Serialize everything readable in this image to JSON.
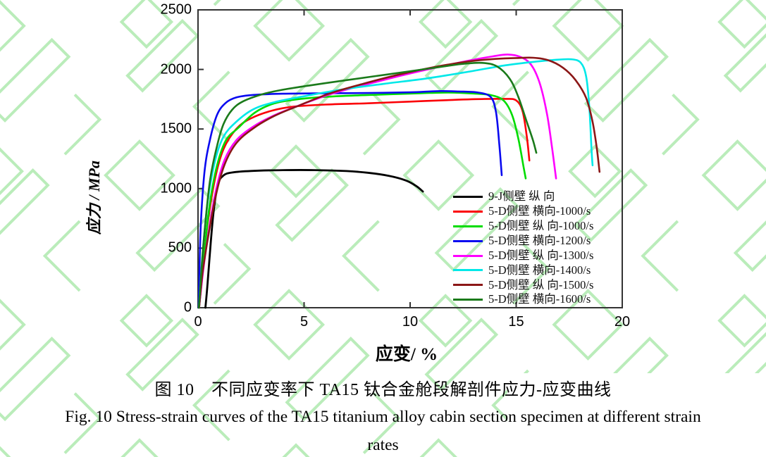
{
  "figure": {
    "caption_zh": "图 10　不同应变率下 TA15 钛合金舱段解剖件应力-应变曲线",
    "caption_en_line1": "Fig. 10 Stress-strain curves of the TA15 titanium alloy cabin section specimen at different strain",
    "caption_en_line2": "rates"
  },
  "watermark": {
    "color": "#a9e8a9"
  },
  "chart_data": {
    "type": "line",
    "title": "",
    "xlabel": "应变/ %",
    "ylabel": "应力 / MPa",
    "xlim": [
      0,
      20
    ],
    "ylim": [
      0,
      2500
    ],
    "x_ticks": [
      "0",
      "5",
      "10",
      "15",
      "20"
    ],
    "y_ticks": [
      "0",
      "500",
      "1000",
      "1500",
      "2000",
      "2500"
    ],
    "grid": false,
    "legend_position": "inside-lower-right",
    "axis_color": "#333333",
    "series": [
      {
        "name": "9-J侧壁 纵 向",
        "color": "#000000",
        "points": [
          [
            0.35,
            0
          ],
          [
            0.45,
            200
          ],
          [
            0.6,
            550
          ],
          [
            0.75,
            830
          ],
          [
            0.95,
            1040
          ],
          [
            1.2,
            1110
          ],
          [
            1.6,
            1135
          ],
          [
            2.5,
            1148
          ],
          [
            4,
            1155
          ],
          [
            5.5,
            1155
          ],
          [
            7,
            1147
          ],
          [
            8,
            1133
          ],
          [
            9,
            1107
          ],
          [
            9.8,
            1068
          ],
          [
            10.3,
            1020
          ],
          [
            10.6,
            975
          ]
        ]
      },
      {
        "name": "5-D侧壁 横向-1000/s",
        "color": "#fb0006",
        "points": [
          [
            0.05,
            0
          ],
          [
            0.2,
            280
          ],
          [
            0.45,
            700
          ],
          [
            0.8,
            1080
          ],
          [
            1.2,
            1330
          ],
          [
            1.8,
            1500
          ],
          [
            2.5,
            1590
          ],
          [
            3.5,
            1655
          ],
          [
            4.5,
            1688
          ],
          [
            6,
            1705
          ],
          [
            8,
            1716
          ],
          [
            10,
            1730
          ],
          [
            12,
            1744
          ],
          [
            13.5,
            1752
          ],
          [
            14.5,
            1753
          ],
          [
            15,
            1740
          ],
          [
            15.3,
            1650
          ],
          [
            15.5,
            1440
          ],
          [
            15.62,
            1235
          ]
        ]
      },
      {
        "name": "5-D侧壁 纵 向-1000/s",
        "color": "#00dc00",
        "points": [
          [
            0.05,
            0
          ],
          [
            0.25,
            350
          ],
          [
            0.5,
            800
          ],
          [
            0.85,
            1160
          ],
          [
            1.3,
            1400
          ],
          [
            1.9,
            1510
          ],
          [
            2.7,
            1640
          ],
          [
            3.6,
            1715
          ],
          [
            4.8,
            1752
          ],
          [
            6.5,
            1775
          ],
          [
            8.5,
            1788
          ],
          [
            10.5,
            1800
          ],
          [
            11.8,
            1806
          ],
          [
            13,
            1798
          ],
          [
            13.8,
            1785
          ],
          [
            14.4,
            1740
          ],
          [
            14.8,
            1620
          ],
          [
            15.1,
            1420
          ],
          [
            15.35,
            1180
          ],
          [
            15.45,
            1085
          ]
        ]
      },
      {
        "name": "5-D侧壁 横向-1200/s",
        "color": "#0a0af0",
        "points": [
          [
            0.03,
            0
          ],
          [
            0.12,
            650
          ],
          [
            0.3,
            1130
          ],
          [
            0.55,
            1400
          ],
          [
            0.9,
            1620
          ],
          [
            1.3,
            1718
          ],
          [
            1.8,
            1765
          ],
          [
            2.6,
            1786
          ],
          [
            4,
            1796
          ],
          [
            6,
            1800
          ],
          [
            8,
            1802
          ],
          [
            10,
            1808
          ],
          [
            11.3,
            1818
          ],
          [
            12.3,
            1815
          ],
          [
            13.2,
            1806
          ],
          [
            13.8,
            1768
          ],
          [
            14.05,
            1640
          ],
          [
            14.2,
            1380
          ],
          [
            14.32,
            1112
          ]
        ]
      },
      {
        "name": "5-D侧壁 纵 向-1300/s",
        "color": "#ff00ff",
        "points": [
          [
            0.05,
            0
          ],
          [
            0.25,
            320
          ],
          [
            0.5,
            640
          ],
          [
            0.85,
            990
          ],
          [
            1.25,
            1240
          ],
          [
            1.8,
            1405
          ],
          [
            2.6,
            1520
          ],
          [
            3.6,
            1615
          ],
          [
            4.8,
            1700
          ],
          [
            6.2,
            1790
          ],
          [
            7.8,
            1868
          ],
          [
            9.5,
            1945
          ],
          [
            11.2,
            2015
          ],
          [
            12.8,
            2075
          ],
          [
            13.9,
            2110
          ],
          [
            14.6,
            2125
          ],
          [
            15.2,
            2105
          ],
          [
            15.7,
            2040
          ],
          [
            16.1,
            1890
          ],
          [
            16.45,
            1630
          ],
          [
            16.7,
            1330
          ],
          [
            16.88,
            1085
          ]
        ]
      },
      {
        "name": "5-D侧壁 横向-1400/s",
        "color": "#00e8e8",
        "points": [
          [
            0.04,
            0
          ],
          [
            0.2,
            420
          ],
          [
            0.45,
            880
          ],
          [
            0.8,
            1230
          ],
          [
            1.2,
            1435
          ],
          [
            1.8,
            1560
          ],
          [
            2.6,
            1665
          ],
          [
            3.6,
            1725
          ],
          [
            5,
            1775
          ],
          [
            6.8,
            1832
          ],
          [
            8.8,
            1880
          ],
          [
            10.8,
            1925
          ],
          [
            12.8,
            1982
          ],
          [
            14.5,
            2035
          ],
          [
            15.8,
            2063
          ],
          [
            16.8,
            2080
          ],
          [
            17.6,
            2085
          ],
          [
            18.05,
            2055
          ],
          [
            18.3,
            1940
          ],
          [
            18.45,
            1680
          ],
          [
            18.55,
            1330
          ],
          [
            18.6,
            1195
          ]
        ]
      },
      {
        "name": "5-D侧壁 纵 向-1500/s",
        "color": "#8b1717",
        "points": [
          [
            0.05,
            0
          ],
          [
            0.22,
            300
          ],
          [
            0.5,
            620
          ],
          [
            0.85,
            950
          ],
          [
            1.25,
            1200
          ],
          [
            1.8,
            1380
          ],
          [
            2.6,
            1505
          ],
          [
            3.6,
            1610
          ],
          [
            4.8,
            1700
          ],
          [
            6.2,
            1798
          ],
          [
            7.8,
            1880
          ],
          [
            9.5,
            1958
          ],
          [
            11.2,
            2022
          ],
          [
            12.8,
            2068
          ],
          [
            14,
            2088
          ],
          [
            15,
            2096
          ],
          [
            15.8,
            2098
          ],
          [
            16.5,
            2078
          ],
          [
            17.2,
            2015
          ],
          [
            17.8,
            1910
          ],
          [
            18.3,
            1760
          ],
          [
            18.6,
            1560
          ],
          [
            18.8,
            1340
          ],
          [
            18.93,
            1140
          ]
        ]
      },
      {
        "name": "5-D侧壁 横向-1600/s",
        "color": "#1a7a1a",
        "points": [
          [
            0.04,
            0
          ],
          [
            0.25,
            520
          ],
          [
            0.55,
            1050
          ],
          [
            0.9,
            1360
          ],
          [
            1.2,
            1540
          ],
          [
            1.6,
            1660
          ],
          [
            2.1,
            1730
          ],
          [
            3,
            1790
          ],
          [
            4,
            1830
          ],
          [
            5.5,
            1872
          ],
          [
            7,
            1910
          ],
          [
            9,
            1960
          ],
          [
            11,
            2010
          ],
          [
            12.4,
            2045
          ],
          [
            13.4,
            2055
          ],
          [
            14.1,
            2025
          ],
          [
            14.7,
            1920
          ],
          [
            15.1,
            1770
          ],
          [
            15.5,
            1560
          ],
          [
            15.8,
            1400
          ],
          [
            15.95,
            1300
          ]
        ]
      }
    ]
  }
}
